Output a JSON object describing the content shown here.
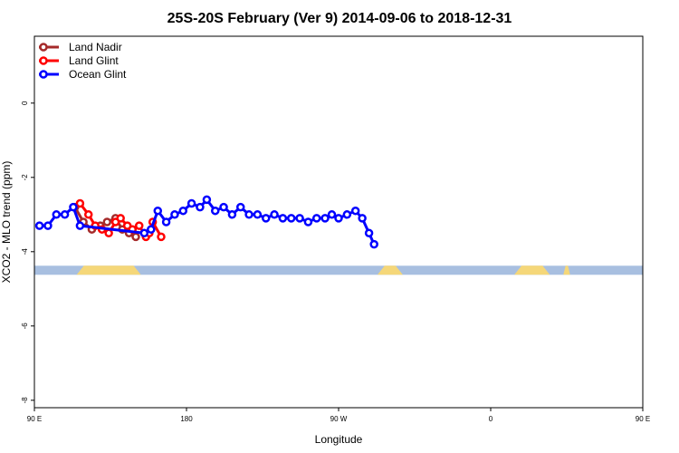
{
  "chart_data": {
    "type": "line",
    "title": "25S-20S February (Ver 9)   2014-09-06 to 2018-12-31",
    "xlabel": "Longitude",
    "ylabel": "XCO2 - MLO trend (ppm)",
    "xlim": [
      90,
      450
    ],
    "ylim": [
      -8.2,
      1.8
    ],
    "x_ticks": [
      {
        "value": 90,
        "label": "90 E"
      },
      {
        "value": 180,
        "label": "180"
      },
      {
        "value": 270,
        "label": "90 W"
      },
      {
        "value": 360,
        "label": "0"
      },
      {
        "value": 450,
        "label": "90 E"
      },
      {
        "value": 540,
        "label": "180"
      }
    ],
    "y_ticks": [
      {
        "value": 0,
        "label": "0"
      },
      {
        "value": -2,
        "label": "-2"
      },
      {
        "value": -4,
        "label": "-4"
      },
      {
        "value": -6,
        "label": "-6"
      },
      {
        "value": -8,
        "label": "-8"
      }
    ],
    "legend_position": "top-left",
    "land_mask": {
      "y_center": -4.5,
      "ocean_color": "#a8bfe0",
      "land_color": "#f5d779",
      "land_segments": [
        [
          115,
          153
        ],
        [
          293,
          308
        ],
        [
          374,
          395
        ],
        [
          403,
          407
        ],
        [
          472,
          528
        ]
      ]
    },
    "series": [
      {
        "name": "Land Nadir",
        "color": "#a52a2a",
        "x": [
          114,
          119,
          124,
          129,
          133,
          138,
          142,
          146,
          150
        ],
        "y": [
          -2.8,
          -3.2,
          -3.4,
          -3.3,
          -3.2,
          -3.1,
          -3.4,
          -3.5,
          -3.6
        ]
      },
      {
        "name": "Land Glint",
        "color": "#ff0000",
        "x": [
          117,
          122,
          126,
          130,
          134,
          138,
          141,
          145,
          148,
          152,
          156,
          158,
          160,
          165
        ],
        "y": [
          -2.7,
          -3.0,
          -3.3,
          -3.4,
          -3.5,
          -3.2,
          -3.1,
          -3.3,
          -3.4,
          -3.3,
          -3.6,
          -3.5,
          -3.2,
          -3.6
        ]
      },
      {
        "name": "Ocean Glint",
        "color": "#0000ff",
        "x": [
          93,
          98,
          103,
          108,
          113,
          117,
          155,
          159,
          163,
          168,
          173,
          178,
          183,
          188,
          192,
          197,
          202,
          207,
          212,
          217,
          222,
          227,
          232,
          237,
          242,
          247,
          252,
          257,
          262,
          266,
          270,
          275,
          280,
          284,
          288,
          291
        ],
        "y": [
          -3.3,
          -3.3,
          -3.0,
          -3.0,
          -2.8,
          -3.3,
          -3.5,
          -3.4,
          -2.9,
          -3.2,
          -3.0,
          -2.9,
          -2.7,
          -2.8,
          -2.6,
          -2.9,
          -2.8,
          -3.0,
          -2.8,
          -3.0,
          -3.0,
          -3.1,
          -3.0,
          -3.1,
          -3.1,
          -3.1,
          -3.2,
          -3.1,
          -3.1,
          -3.0,
          -3.1,
          -3.0,
          -2.9,
          -3.1,
          -3.5,
          -3.8
        ]
      }
    ]
  }
}
